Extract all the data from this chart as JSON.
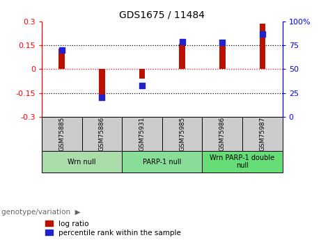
{
  "title": "GDS1675 / 11484",
  "samples": [
    "GSM75885",
    "GSM75886",
    "GSM75931",
    "GSM75985",
    "GSM75986",
    "GSM75987"
  ],
  "log_ratio": [
    0.13,
    -0.19,
    -0.06,
    0.16,
    0.16,
    0.285
  ],
  "percentile_rank": [
    70,
    20,
    33,
    79,
    78,
    87
  ],
  "ylim_left": [
    -0.3,
    0.3
  ],
  "ylim_right": [
    0,
    100
  ],
  "yticks_left": [
    -0.3,
    -0.15,
    0,
    0.15,
    0.3
  ],
  "yticks_right": [
    0,
    25,
    50,
    75,
    100
  ],
  "hlines_black": [
    0.15,
    -0.15
  ],
  "hline_red": 0,
  "bar_color": "#bb1100",
  "dot_color": "#2222cc",
  "groups": [
    {
      "label": "Wrn null",
      "start": 0,
      "end": 2,
      "color": "#aaddaa"
    },
    {
      "label": "PARP-1 null",
      "start": 2,
      "end": 4,
      "color": "#88dd99"
    },
    {
      "label": "Wrn PARP-1 double\nnull",
      "start": 4,
      "end": 6,
      "color": "#66dd77"
    }
  ],
  "genotype_label": "genotype/variation",
  "legend_log_ratio": "log ratio",
  "legend_percentile": "percentile rank within the sample",
  "bar_width": 0.15,
  "dot_size": 35,
  "label_box_color": "#cccccc",
  "title_fontsize": 10,
  "tick_fontsize": 8,
  "sample_fontsize": 6.5,
  "group_fontsize": 7
}
